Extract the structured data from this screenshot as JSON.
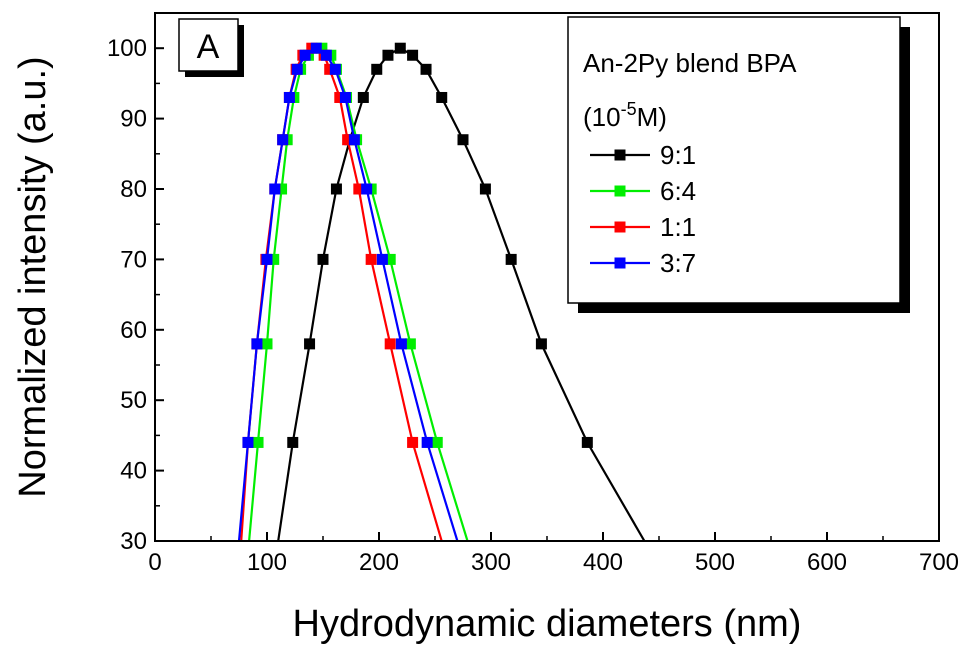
{
  "chart_data": {
    "type": "line",
    "panel_label": "A",
    "xlabel": "Hydrodynamic diameters (nm)",
    "ylabel": "Normalized intensity (a.u.)",
    "xlim": [
      0,
      700
    ],
    "ylim": [
      30,
      105
    ],
    "xticks": [
      0,
      100,
      200,
      300,
      400,
      500,
      600,
      700
    ],
    "yticks": [
      30,
      40,
      50,
      60,
      70,
      80,
      90,
      100
    ],
    "grid": false,
    "legend": {
      "position": "top-right",
      "title_line1": "An-2Py blend BPA",
      "title_line2_pre": "(10",
      "title_line2_sup": "-5",
      "title_line2_post": "M)"
    },
    "series": [
      {
        "name": "9:1",
        "color": "#000000",
        "points": [
          [
            110,
            30
          ],
          [
            123,
            44
          ],
          [
            138,
            58
          ],
          [
            150,
            70
          ],
          [
            162,
            80
          ],
          [
            174,
            87
          ],
          [
            186,
            93
          ],
          [
            198,
            97
          ],
          [
            208,
            99
          ],
          [
            219,
            100
          ],
          [
            230,
            99
          ],
          [
            242,
            97
          ],
          [
            256,
            93
          ],
          [
            275,
            87
          ],
          [
            295,
            80
          ],
          [
            318,
            70
          ],
          [
            345,
            58
          ],
          [
            386,
            44
          ],
          [
            437,
            30
          ]
        ],
        "marker_points": [
          [
            123,
            44
          ],
          [
            138,
            58
          ],
          [
            150,
            70
          ],
          [
            162,
            80
          ],
          [
            174,
            87
          ],
          [
            186,
            93
          ],
          [
            198,
            97
          ],
          [
            208,
            99
          ],
          [
            219,
            100
          ],
          [
            230,
            99
          ],
          [
            242,
            97
          ],
          [
            256,
            93
          ],
          [
            275,
            87
          ],
          [
            295,
            80
          ],
          [
            318,
            70
          ],
          [
            345,
            58
          ],
          [
            386,
            44
          ]
        ]
      },
      {
        "name": "6:4",
        "color": "#00ee00",
        "points": [
          [
            84,
            30
          ],
          [
            92,
            44
          ],
          [
            100,
            58
          ],
          [
            106,
            70
          ],
          [
            113,
            80
          ],
          [
            118,
            87
          ],
          [
            124,
            93
          ],
          [
            130,
            97
          ],
          [
            137,
            99
          ],
          [
            149,
            100
          ],
          [
            157,
            99
          ],
          [
            162,
            97
          ],
          [
            171,
            93
          ],
          [
            180,
            87
          ],
          [
            193,
            80
          ],
          [
            210,
            70
          ],
          [
            228,
            58
          ],
          [
            252,
            44
          ],
          [
            279,
            30
          ]
        ],
        "marker_points": [
          [
            92,
            44
          ],
          [
            100,
            58
          ],
          [
            106,
            70
          ],
          [
            113,
            80
          ],
          [
            118,
            87
          ],
          [
            124,
            93
          ],
          [
            130,
            97
          ],
          [
            137,
            99
          ],
          [
            149,
            100
          ],
          [
            157,
            99
          ],
          [
            162,
            97
          ],
          [
            171,
            93
          ],
          [
            180,
            87
          ],
          [
            193,
            80
          ],
          [
            210,
            70
          ],
          [
            228,
            58
          ],
          [
            252,
            44
          ]
        ]
      },
      {
        "name": "1:1",
        "color": "#ff0000",
        "points": [
          [
            77,
            30
          ],
          [
            83,
            44
          ],
          [
            91,
            58
          ],
          [
            99,
            70
          ],
          [
            107,
            80
          ],
          [
            114,
            87
          ],
          [
            120,
            93
          ],
          [
            126,
            97
          ],
          [
            132,
            99
          ],
          [
            140,
            100
          ],
          [
            151,
            99
          ],
          [
            156,
            97
          ],
          [
            165,
            93
          ],
          [
            172,
            87
          ],
          [
            182,
            80
          ],
          [
            193,
            70
          ],
          [
            210,
            58
          ],
          [
            230,
            44
          ],
          [
            256,
            30
          ]
        ],
        "marker_points": [
          [
            83,
            44
          ],
          [
            91,
            58
          ],
          [
            99,
            70
          ],
          [
            107,
            80
          ],
          [
            114,
            87
          ],
          [
            120,
            93
          ],
          [
            126,
            97
          ],
          [
            132,
            99
          ],
          [
            140,
            100
          ],
          [
            151,
            99
          ],
          [
            156,
            97
          ],
          [
            165,
            93
          ],
          [
            172,
            87
          ],
          [
            182,
            80
          ],
          [
            193,
            70
          ],
          [
            210,
            58
          ],
          [
            230,
            44
          ]
        ]
      },
      {
        "name": "3:7",
        "color": "#0000ff",
        "points": [
          [
            75,
            30
          ],
          [
            83,
            44
          ],
          [
            91,
            58
          ],
          [
            100,
            70
          ],
          [
            107,
            80
          ],
          [
            114,
            87
          ],
          [
            120,
            93
          ],
          [
            127,
            97
          ],
          [
            134,
            99
          ],
          [
            144,
            100
          ],
          [
            153,
            99
          ],
          [
            161,
            97
          ],
          [
            170,
            93
          ],
          [
            178,
            87
          ],
          [
            189,
            80
          ],
          [
            203,
            70
          ],
          [
            220,
            58
          ],
          [
            243,
            44
          ],
          [
            270,
            30
          ]
        ],
        "marker_points": [
          [
            83,
            44
          ],
          [
            91,
            58
          ],
          [
            100,
            70
          ],
          [
            107,
            80
          ],
          [
            114,
            87
          ],
          [
            120,
            93
          ],
          [
            127,
            97
          ],
          [
            134,
            99
          ],
          [
            144,
            100
          ],
          [
            153,
            99
          ],
          [
            161,
            97
          ],
          [
            170,
            93
          ],
          [
            178,
            87
          ],
          [
            189,
            80
          ],
          [
            203,
            70
          ],
          [
            220,
            58
          ],
          [
            243,
            44
          ]
        ]
      }
    ]
  }
}
